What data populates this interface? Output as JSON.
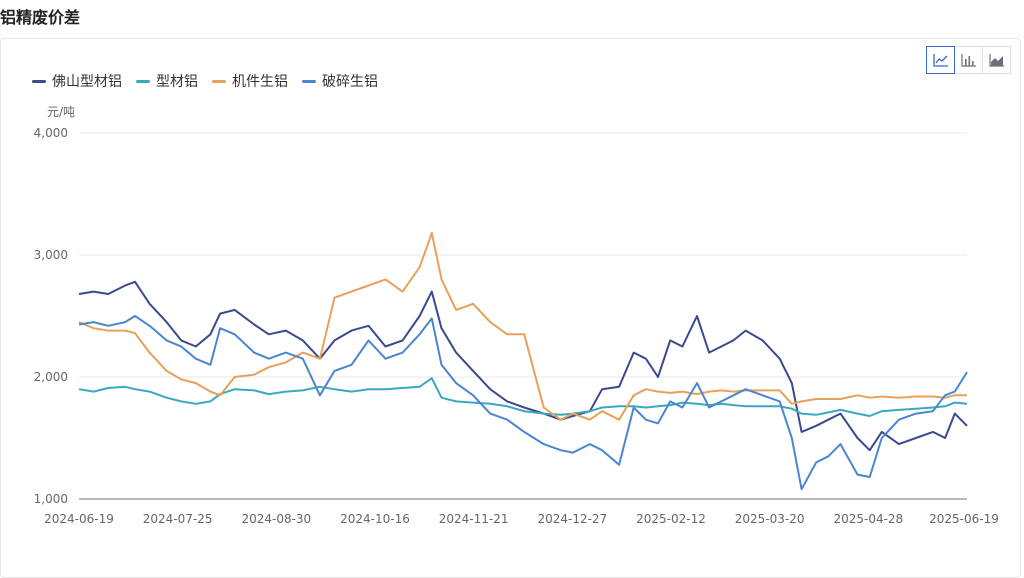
{
  "page": {
    "title": "铝精废价差"
  },
  "toolbar": {
    "buttons": [
      {
        "icon": "line-chart-icon",
        "active": true
      },
      {
        "icon": "bar-chart-icon",
        "active": false
      },
      {
        "icon": "area-chart-icon",
        "active": false
      }
    ]
  },
  "colors": {
    "grid": "#e8e8e8",
    "axis": "#6e7079",
    "accent": "#3a67c7"
  },
  "chart_data": {
    "type": "line",
    "title": "",
    "ylabel": "元/吨",
    "ylim": [
      1000,
      4000
    ],
    "yticks": [
      1000,
      2000,
      3000,
      4000
    ],
    "ytick_labels": [
      "1,000",
      "2,000",
      "3,000",
      "4,000"
    ],
    "x_start": "2024-06-19",
    "x_end": "2025-06-19",
    "xtick_labels": [
      "2024-06-19",
      "2024-07-25",
      "2024-08-30",
      "2024-10-16",
      "2024-11-21",
      "2024-12-27",
      "2025-02-12",
      "2025-03-20",
      "2025-04-28",
      "2025-06-19"
    ],
    "grid": true,
    "legend": "top-left",
    "series": [
      {
        "name": "佛山型材铝",
        "color": "#3b4a8f",
        "points": [
          [
            "2024-06-19",
            2680
          ],
          [
            "2024-06-25",
            2700
          ],
          [
            "2024-07-01",
            2680
          ],
          [
            "2024-07-08",
            2750
          ],
          [
            "2024-07-12",
            2780
          ],
          [
            "2024-07-18",
            2600
          ],
          [
            "2024-07-25",
            2450
          ],
          [
            "2024-07-31",
            2300
          ],
          [
            "2024-08-06",
            2250
          ],
          [
            "2024-08-12",
            2350
          ],
          [
            "2024-08-16",
            2520
          ],
          [
            "2024-08-22",
            2550
          ],
          [
            "2024-08-30",
            2430
          ],
          [
            "2024-09-05",
            2350
          ],
          [
            "2024-09-12",
            2380
          ],
          [
            "2024-09-19",
            2300
          ],
          [
            "2024-09-26",
            2150
          ],
          [
            "2024-10-02",
            2300
          ],
          [
            "2024-10-09",
            2380
          ],
          [
            "2024-10-16",
            2420
          ],
          [
            "2024-10-23",
            2250
          ],
          [
            "2024-10-30",
            2300
          ],
          [
            "2024-11-06",
            2500
          ],
          [
            "2024-11-11",
            2700
          ],
          [
            "2024-11-15",
            2400
          ],
          [
            "2024-11-21",
            2200
          ],
          [
            "2024-11-28",
            2050
          ],
          [
            "2024-12-05",
            1900
          ],
          [
            "2024-12-12",
            1800
          ],
          [
            "2024-12-19",
            1750
          ],
          [
            "2024-12-27",
            1700
          ],
          [
            "2025-01-03",
            1650
          ],
          [
            "2025-01-08",
            1680
          ],
          [
            "2025-01-15",
            1720
          ],
          [
            "2025-01-20",
            1900
          ],
          [
            "2025-01-27",
            1920
          ],
          [
            "2025-02-02",
            2200
          ],
          [
            "2025-02-07",
            2150
          ],
          [
            "2025-02-12",
            2000
          ],
          [
            "2025-02-17",
            2300
          ],
          [
            "2025-02-22",
            2250
          ],
          [
            "2025-02-28",
            2500
          ],
          [
            "2025-03-05",
            2200
          ],
          [
            "2025-03-10",
            2250
          ],
          [
            "2025-03-15",
            2300
          ],
          [
            "2025-03-20",
            2380
          ],
          [
            "2025-03-27",
            2300
          ],
          [
            "2025-04-03",
            2150
          ],
          [
            "2025-04-08",
            1950
          ],
          [
            "2025-04-12",
            1550
          ],
          [
            "2025-04-18",
            1600
          ],
          [
            "2025-04-23",
            1650
          ],
          [
            "2025-04-28",
            1700
          ],
          [
            "2025-05-05",
            1500
          ],
          [
            "2025-05-10",
            1400
          ],
          [
            "2025-05-15",
            1550
          ],
          [
            "2025-05-22",
            1450
          ],
          [
            "2025-05-29",
            1500
          ],
          [
            "2025-06-05",
            1550
          ],
          [
            "2025-06-10",
            1500
          ],
          [
            "2025-06-14",
            1700
          ],
          [
            "2025-06-19",
            1600
          ]
        ]
      },
      {
        "name": "型材铝",
        "color": "#3aa8c1",
        "points": [
          [
            "2024-06-19",
            1900
          ],
          [
            "2024-06-25",
            1880
          ],
          [
            "2024-07-01",
            1910
          ],
          [
            "2024-07-08",
            1920
          ],
          [
            "2024-07-12",
            1900
          ],
          [
            "2024-07-18",
            1880
          ],
          [
            "2024-07-25",
            1830
          ],
          [
            "2024-07-31",
            1800
          ],
          [
            "2024-08-06",
            1780
          ],
          [
            "2024-08-12",
            1800
          ],
          [
            "2024-08-16",
            1860
          ],
          [
            "2024-08-22",
            1900
          ],
          [
            "2024-08-30",
            1890
          ],
          [
            "2024-09-05",
            1860
          ],
          [
            "2024-09-12",
            1880
          ],
          [
            "2024-09-19",
            1890
          ],
          [
            "2024-09-26",
            1920
          ],
          [
            "2024-10-02",
            1900
          ],
          [
            "2024-10-09",
            1880
          ],
          [
            "2024-10-16",
            1900
          ],
          [
            "2024-10-23",
            1900
          ],
          [
            "2024-10-30",
            1910
          ],
          [
            "2024-11-06",
            1920
          ],
          [
            "2024-11-11",
            1990
          ],
          [
            "2024-11-15",
            1830
          ],
          [
            "2024-11-21",
            1800
          ],
          [
            "2024-11-28",
            1790
          ],
          [
            "2024-12-05",
            1780
          ],
          [
            "2024-12-12",
            1760
          ],
          [
            "2024-12-19",
            1720
          ],
          [
            "2024-12-27",
            1700
          ],
          [
            "2025-01-03",
            1690
          ],
          [
            "2025-01-08",
            1700
          ],
          [
            "2025-01-15",
            1720
          ],
          [
            "2025-01-20",
            1750
          ],
          [
            "2025-01-27",
            1760
          ],
          [
            "2025-02-02",
            1760
          ],
          [
            "2025-02-07",
            1750
          ],
          [
            "2025-02-12",
            1760
          ],
          [
            "2025-02-17",
            1770
          ],
          [
            "2025-02-22",
            1790
          ],
          [
            "2025-02-28",
            1780
          ],
          [
            "2025-03-05",
            1770
          ],
          [
            "2025-03-10",
            1780
          ],
          [
            "2025-03-15",
            1770
          ],
          [
            "2025-03-20",
            1760
          ],
          [
            "2025-03-27",
            1760
          ],
          [
            "2025-04-03",
            1760
          ],
          [
            "2025-04-08",
            1740
          ],
          [
            "2025-04-12",
            1700
          ],
          [
            "2025-04-18",
            1690
          ],
          [
            "2025-04-23",
            1710
          ],
          [
            "2025-04-28",
            1730
          ],
          [
            "2025-05-05",
            1700
          ],
          [
            "2025-05-10",
            1680
          ],
          [
            "2025-05-15",
            1720
          ],
          [
            "2025-05-22",
            1730
          ],
          [
            "2025-05-29",
            1740
          ],
          [
            "2025-06-05",
            1750
          ],
          [
            "2025-06-10",
            1760
          ],
          [
            "2025-06-14",
            1790
          ],
          [
            "2025-06-19",
            1780
          ]
        ]
      },
      {
        "name": "机件生铝",
        "color": "#e9a15a",
        "points": [
          [
            "2024-06-19",
            2450
          ],
          [
            "2024-06-25",
            2400
          ],
          [
            "2024-07-01",
            2380
          ],
          [
            "2024-07-08",
            2380
          ],
          [
            "2024-07-12",
            2360
          ],
          [
            "2024-07-18",
            2200
          ],
          [
            "2024-07-25",
            2050
          ],
          [
            "2024-07-31",
            1980
          ],
          [
            "2024-08-06",
            1950
          ],
          [
            "2024-08-12",
            1880
          ],
          [
            "2024-08-16",
            1850
          ],
          [
            "2024-08-22",
            2000
          ],
          [
            "2024-08-30",
            2020
          ],
          [
            "2024-09-05",
            2080
          ],
          [
            "2024-09-12",
            2120
          ],
          [
            "2024-09-19",
            2200
          ],
          [
            "2024-09-26",
            2150
          ],
          [
            "2024-10-02",
            2650
          ],
          [
            "2024-10-09",
            2700
          ],
          [
            "2024-10-16",
            2750
          ],
          [
            "2024-10-23",
            2800
          ],
          [
            "2024-10-30",
            2700
          ],
          [
            "2024-11-06",
            2900
          ],
          [
            "2024-11-11",
            3180
          ],
          [
            "2024-11-15",
            2800
          ],
          [
            "2024-11-21",
            2550
          ],
          [
            "2024-11-28",
            2600
          ],
          [
            "2024-12-05",
            2450
          ],
          [
            "2024-12-12",
            2350
          ],
          [
            "2024-12-19",
            2350
          ],
          [
            "2024-12-27",
            1750
          ],
          [
            "2025-01-03",
            1650
          ],
          [
            "2025-01-08",
            1700
          ],
          [
            "2025-01-15",
            1650
          ],
          [
            "2025-01-20",
            1720
          ],
          [
            "2025-01-27",
            1650
          ],
          [
            "2025-02-02",
            1850
          ],
          [
            "2025-02-07",
            1900
          ],
          [
            "2025-02-12",
            1880
          ],
          [
            "2025-02-17",
            1870
          ],
          [
            "2025-02-22",
            1880
          ],
          [
            "2025-02-28",
            1860
          ],
          [
            "2025-03-05",
            1880
          ],
          [
            "2025-03-10",
            1890
          ],
          [
            "2025-03-15",
            1880
          ],
          [
            "2025-03-20",
            1890
          ],
          [
            "2025-03-27",
            1890
          ],
          [
            "2025-04-03",
            1890
          ],
          [
            "2025-04-08",
            1780
          ],
          [
            "2025-04-12",
            1800
          ],
          [
            "2025-04-18",
            1820
          ],
          [
            "2025-04-23",
            1820
          ],
          [
            "2025-04-28",
            1820
          ],
          [
            "2025-05-05",
            1850
          ],
          [
            "2025-05-10",
            1830
          ],
          [
            "2025-05-15",
            1840
          ],
          [
            "2025-05-22",
            1830
          ],
          [
            "2025-05-29",
            1840
          ],
          [
            "2025-06-05",
            1840
          ],
          [
            "2025-06-10",
            1830
          ],
          [
            "2025-06-14",
            1850
          ],
          [
            "2025-06-19",
            1850
          ]
        ]
      },
      {
        "name": "破碎生铝",
        "color": "#4a86d0",
        "points": [
          [
            "2024-06-19",
            2430
          ],
          [
            "2024-06-25",
            2450
          ],
          [
            "2024-07-01",
            2420
          ],
          [
            "2024-07-08",
            2450
          ],
          [
            "2024-07-12",
            2500
          ],
          [
            "2024-07-18",
            2420
          ],
          [
            "2024-07-25",
            2300
          ],
          [
            "2024-07-31",
            2250
          ],
          [
            "2024-08-06",
            2150
          ],
          [
            "2024-08-12",
            2100
          ],
          [
            "2024-08-16",
            2400
          ],
          [
            "2024-08-22",
            2350
          ],
          [
            "2024-08-30",
            2200
          ],
          [
            "2024-09-05",
            2150
          ],
          [
            "2024-09-12",
            2200
          ],
          [
            "2024-09-19",
            2150
          ],
          [
            "2024-09-26",
            1850
          ],
          [
            "2024-10-02",
            2050
          ],
          [
            "2024-10-09",
            2100
          ],
          [
            "2024-10-16",
            2300
          ],
          [
            "2024-10-23",
            2150
          ],
          [
            "2024-10-30",
            2200
          ],
          [
            "2024-11-06",
            2350
          ],
          [
            "2024-11-11",
            2480
          ],
          [
            "2024-11-15",
            2100
          ],
          [
            "2024-11-21",
            1950
          ],
          [
            "2024-11-28",
            1850
          ],
          [
            "2024-12-05",
            1700
          ],
          [
            "2024-12-12",
            1650
          ],
          [
            "2024-12-19",
            1550
          ],
          [
            "2024-12-27",
            1450
          ],
          [
            "2025-01-03",
            1400
          ],
          [
            "2025-01-08",
            1380
          ],
          [
            "2025-01-15",
            1450
          ],
          [
            "2025-01-20",
            1400
          ],
          [
            "2025-01-27",
            1280
          ],
          [
            "2025-02-02",
            1750
          ],
          [
            "2025-02-07",
            1650
          ],
          [
            "2025-02-12",
            1620
          ],
          [
            "2025-02-17",
            1800
          ],
          [
            "2025-02-22",
            1750
          ],
          [
            "2025-02-28",
            1950
          ],
          [
            "2025-03-05",
            1750
          ],
          [
            "2025-03-10",
            1800
          ],
          [
            "2025-03-15",
            1850
          ],
          [
            "2025-03-20",
            1900
          ],
          [
            "2025-03-27",
            1850
          ],
          [
            "2025-04-03",
            1800
          ],
          [
            "2025-04-08",
            1500
          ],
          [
            "2025-04-12",
            1080
          ],
          [
            "2025-04-18",
            1300
          ],
          [
            "2025-04-23",
            1350
          ],
          [
            "2025-04-28",
            1450
          ],
          [
            "2025-05-05",
            1200
          ],
          [
            "2025-05-10",
            1180
          ],
          [
            "2025-05-15",
            1500
          ],
          [
            "2025-05-22",
            1650
          ],
          [
            "2025-05-29",
            1700
          ],
          [
            "2025-06-05",
            1720
          ],
          [
            "2025-06-10",
            1850
          ],
          [
            "2025-06-14",
            1880
          ],
          [
            "2025-06-19",
            2040
          ]
        ]
      }
    ]
  }
}
